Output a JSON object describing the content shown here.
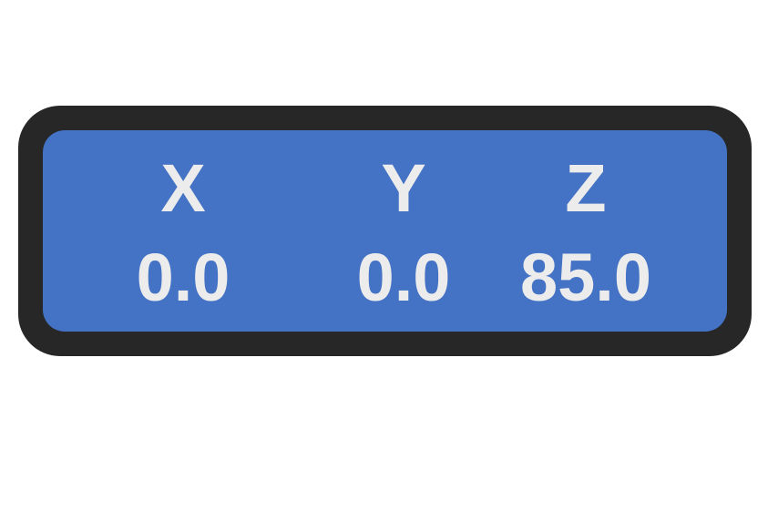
{
  "coordinate_display": {
    "axes": [
      {
        "label": "X",
        "value": "0.0"
      },
      {
        "label": "Y",
        "value": "0.0"
      },
      {
        "label": "Z",
        "value": "85.0"
      }
    ]
  },
  "colors": {
    "frame": "#272727",
    "panel": "#4472c4",
    "text": "#ececec",
    "background": "#ffffff"
  }
}
